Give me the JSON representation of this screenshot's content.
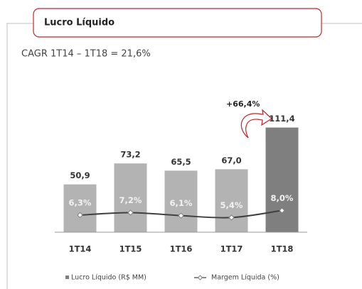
{
  "header": "Lucro Líquido",
  "subtitle": "CAGR 1T14 – 1T18 = 21,6%",
  "chart_data": {
    "type": "bar",
    "annotation": "+66,4%",
    "categories": [
      "1T14",
      "1T15",
      "1T16",
      "1T17",
      "1T18"
    ],
    "ylim": [
      0,
      130
    ],
    "y2lim": [
      0,
      45
    ],
    "series": [
      {
        "name": "Lucro Líquido (R$ MM)",
        "type": "bar",
        "color": "#b3b3b3",
        "colors": [
          "#b3b3b3",
          "#b3b3b3",
          "#b3b3b3",
          "#b3b3b3",
          "#7f7f7f"
        ],
        "values": [
          50.9,
          73.2,
          65.5,
          67.0,
          111.4
        ],
        "value_labels": [
          "50,9",
          "73,2",
          "65,5",
          "67,0",
          "111,4"
        ]
      },
      {
        "name": "Margem Líquida (%)",
        "type": "line",
        "axis": "y2",
        "color": "#404040",
        "values": [
          6.3,
          7.2,
          6.1,
          5.4,
          8.0
        ],
        "value_labels": [
          "6,3%",
          "7,2%",
          "6,1%",
          "5,4%",
          "8,0%"
        ]
      }
    ]
  }
}
